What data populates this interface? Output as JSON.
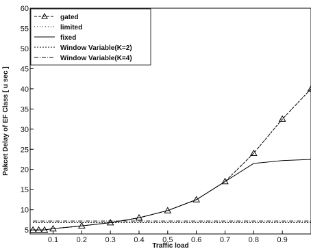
{
  "chart_data": {
    "type": "line",
    "title": "",
    "xlabel": "Traffic load",
    "ylabel": "Pakcet Delay of EF Class [ u sec ]",
    "xlim": [
      0.02,
      1.0
    ],
    "ylim": [
      4,
      60
    ],
    "xticks": [
      0.1,
      0.2,
      0.3,
      0.4,
      0.5,
      0.6,
      0.7,
      0.8,
      0.9
    ],
    "yticks": [
      5,
      10,
      15,
      20,
      25,
      30,
      35,
      40,
      45,
      50,
      55,
      60
    ],
    "grid": false,
    "legend_position": "top-left",
    "series": [
      {
        "name": "gated",
        "marker": "triangle",
        "dash": "4 2",
        "x": [
          0.03,
          0.05,
          0.07,
          0.1,
          0.2,
          0.3,
          0.4,
          0.5,
          0.6,
          0.7,
          0.8,
          0.9,
          1.0
        ],
        "y": [
          5,
          5,
          5,
          5.3,
          6,
          6.8,
          8,
          9.8,
          12.5,
          17,
          24,
          32.5,
          40
        ]
      },
      {
        "name": "limited",
        "marker": "none",
        "dash": "1 3",
        "x": [
          0.03,
          0.05,
          0.07,
          0.1,
          0.2,
          0.3,
          0.4,
          0.5,
          0.6,
          0.7,
          0.8,
          0.9,
          1.0
        ],
        "y": [
          5,
          5,
          5,
          5.3,
          6,
          6.8,
          8,
          9.8,
          12.5,
          17,
          24,
          32.5,
          40
        ]
      },
      {
        "name": "fixed",
        "marker": "none",
        "dash": "",
        "x": [
          0.03,
          0.05,
          0.07,
          0.1,
          0.2,
          0.3,
          0.4,
          0.5,
          0.6,
          0.7,
          0.8,
          0.9,
          1.0
        ],
        "y": [
          5,
          5,
          5,
          5.3,
          6,
          6.8,
          8,
          9.8,
          12.5,
          17,
          21.5,
          22.2,
          22.5
        ]
      },
      {
        "name": "Window Variable(K=2)",
        "marker": "none",
        "dash": "2 2",
        "x": [
          0.03,
          0.1,
          0.2,
          0.3,
          0.4,
          0.5,
          0.6,
          0.7,
          0.8,
          0.9,
          1.0
        ],
        "y": [
          6.8,
          6.8,
          6.8,
          6.8,
          6.8,
          6.8,
          6.8,
          6.8,
          6.8,
          6.8,
          6.8
        ]
      },
      {
        "name": "Window Variable(K=4)",
        "marker": "none",
        "dash": "6 2 1 2",
        "x": [
          0.03,
          0.1,
          0.2,
          0.3,
          0.4,
          0.5,
          0.6,
          0.7,
          0.8,
          0.9,
          1.0
        ],
        "y": [
          7.2,
          7.2,
          7.2,
          7.2,
          7.2,
          7.2,
          7.2,
          7.2,
          7.2,
          7.2,
          7.2
        ]
      }
    ]
  }
}
